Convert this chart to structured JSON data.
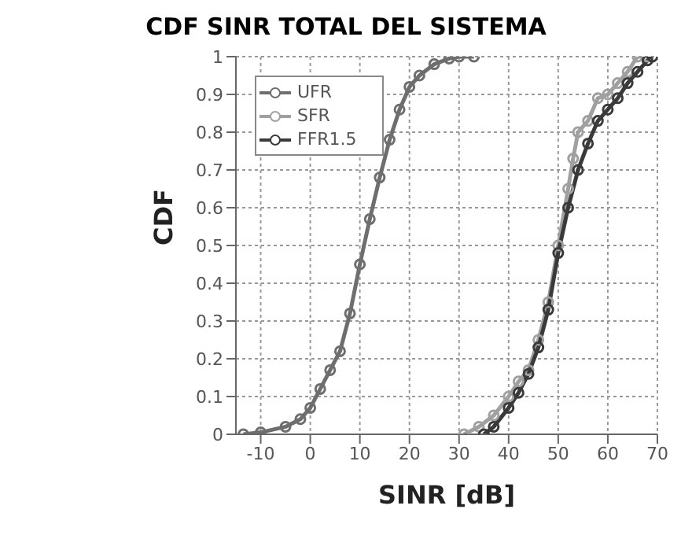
{
  "chart_data": {
    "type": "line",
    "title": "CDF SINR TOTAL DEL SISTEMA",
    "xlabel": "SINR [dB]",
    "ylabel": "CDF",
    "xlim": [
      -15,
      70
    ],
    "xticks": [
      -10,
      0,
      10,
      20,
      30,
      40,
      50,
      60,
      70
    ],
    "ylim": [
      0,
      1
    ],
    "yticks": [
      0,
      0.1,
      0.2,
      0.3,
      0.4,
      0.5,
      0.6,
      0.7,
      0.8,
      0.9,
      1
    ],
    "grid": true,
    "legend": "top left",
    "marker": "circle",
    "line_style": "solid",
    "series": [
      {
        "name": "UFR",
        "color": "#6e6e6e",
        "x": [
          -13.5,
          -10,
          -5,
          -2,
          0,
          2,
          4,
          6,
          8,
          10,
          12,
          14,
          16,
          18,
          20,
          22,
          25,
          28,
          30,
          33
        ],
        "values": [
          0,
          0.005,
          0.02,
          0.04,
          0.07,
          0.12,
          0.17,
          0.22,
          0.32,
          0.45,
          0.57,
          0.68,
          0.78,
          0.86,
          0.92,
          0.95,
          0.98,
          0.995,
          1,
          1
        ]
      },
      {
        "name": "SFR",
        "color": "#a0a0a0",
        "x": [
          31,
          34,
          37,
          40,
          42,
          44,
          46,
          48,
          50,
          52,
          53,
          54,
          56,
          58,
          60,
          62,
          64,
          66,
          68
        ],
        "values": [
          0,
          0.02,
          0.05,
          0.1,
          0.14,
          0.17,
          0.25,
          0.35,
          0.5,
          0.65,
          0.73,
          0.8,
          0.83,
          0.89,
          0.9,
          0.93,
          0.96,
          1,
          1
        ]
      },
      {
        "name": "FFR1.5",
        "color": "#3a3a3a",
        "x": [
          35,
          37,
          40,
          42,
          44,
          46,
          48,
          50,
          52,
          54,
          56,
          58,
          60,
          62,
          64,
          66,
          68,
          69
        ],
        "values": [
          0,
          0.02,
          0.07,
          0.11,
          0.16,
          0.23,
          0.33,
          0.48,
          0.6,
          0.7,
          0.77,
          0.83,
          0.86,
          0.89,
          0.93,
          0.96,
          0.99,
          1
        ]
      }
    ]
  }
}
